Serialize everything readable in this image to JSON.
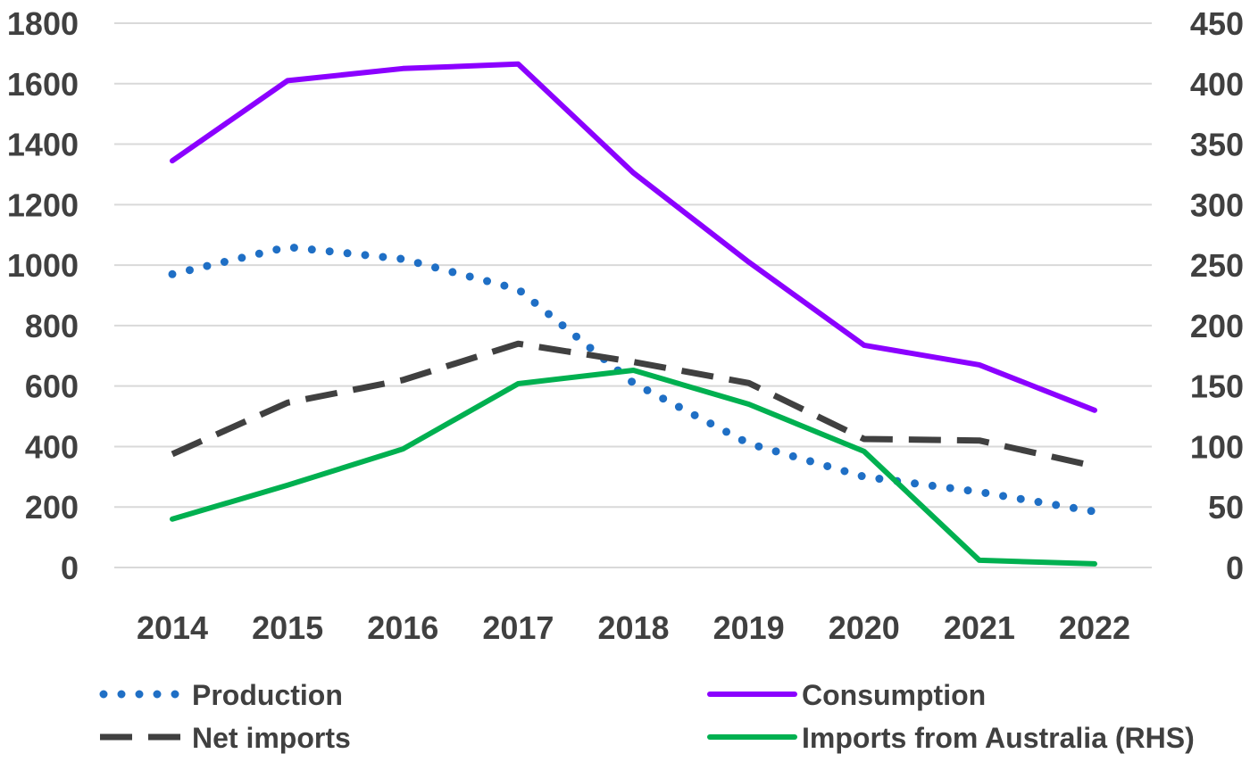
{
  "chart_data": {
    "type": "line",
    "title": "",
    "xlabel": "",
    "ylabel": "",
    "y2label": "",
    "categories": [
      "2014",
      "2015",
      "2016",
      "2017",
      "2018",
      "2019",
      "2020",
      "2021",
      "2022"
    ],
    "ylim": [
      0,
      1800
    ],
    "y2lim": [
      0,
      450
    ],
    "yticks": [
      "0",
      "200",
      "400",
      "600",
      "800",
      "1000",
      "1200",
      "1400",
      "1600",
      "1800"
    ],
    "y2ticks": [
      "0",
      "50",
      "100",
      "150",
      "200",
      "250",
      "300",
      "350",
      "400",
      "450"
    ],
    "grid": true,
    "legend_position": "bottom",
    "series": [
      {
        "name": "Production",
        "axis": "left",
        "style": "dotted",
        "color": "#1f6fc5",
        "values": [
          970,
          1060,
          1020,
          920,
          610,
          410,
          300,
          250,
          185
        ]
      },
      {
        "name": "Consumption",
        "axis": "left",
        "style": "solid",
        "color": "#8b00ff",
        "values": [
          1345,
          1610,
          1650,
          1665,
          1305,
          1010,
          735,
          670,
          520
        ]
      },
      {
        "name": "Net imports",
        "axis": "left",
        "style": "dashed",
        "color": "#404040",
        "values": [
          375,
          545,
          620,
          740,
          680,
          610,
          425,
          420,
          335
        ]
      },
      {
        "name": "Imports from Australia (RHS)",
        "axis": "right",
        "style": "solid",
        "color": "#00b050",
        "values": [
          40,
          68,
          98,
          152,
          163,
          135,
          96,
          6,
          3
        ]
      }
    ]
  }
}
